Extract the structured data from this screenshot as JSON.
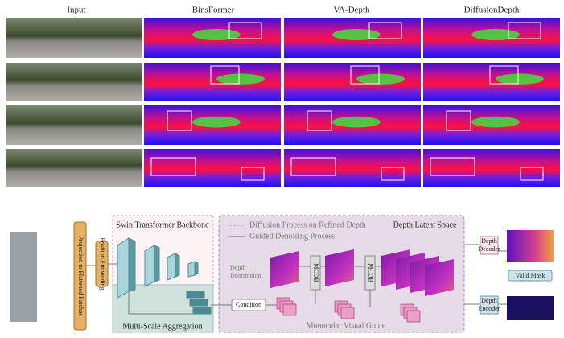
{
  "figure": {
    "column_headers": [
      "Input",
      "BinsFormer",
      "VA-Depth",
      "DiffusionDepth"
    ]
  },
  "diagram": {
    "projection": "Projection to Flattened Patches",
    "position_embedding": "Position Embedding",
    "backbone": "Swin Transformer Backbone",
    "aggregation": "Multi-Scale Aggregation",
    "legend_diffusion": "Diffusion Process on Refined Depth",
    "legend_denoise": "Guided Denoising Process",
    "latent_space": "Depth Latent Space",
    "depth_distribution": [
      "Depth",
      "Distribution"
    ],
    "mcdb": "MCDB",
    "condition": "Condition",
    "visual_guide": "Monocular Visual Guide",
    "decoder": [
      "Depth",
      "Decoder"
    ],
    "encoder": [
      "Depth",
      "Encoder"
    ],
    "valid_mask": "Valid Mask"
  }
}
